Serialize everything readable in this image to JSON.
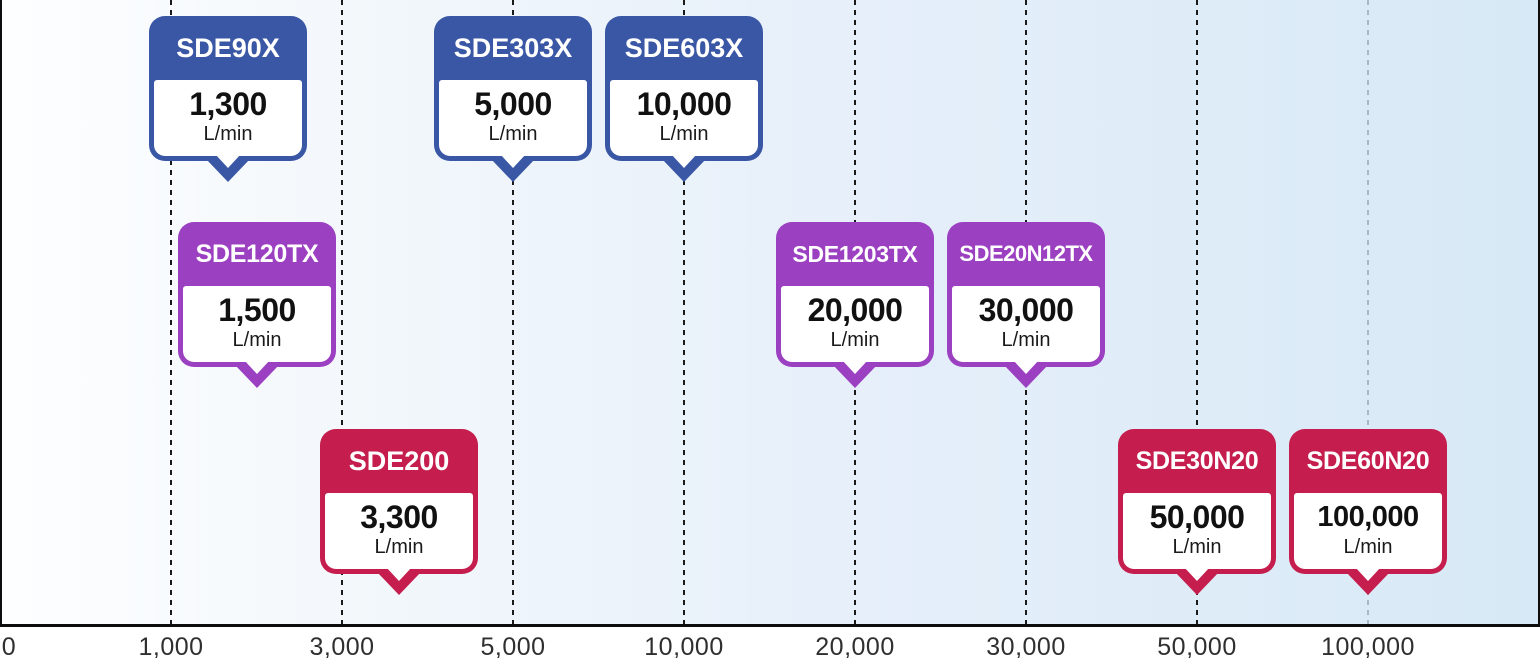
{
  "chart_data": {
    "type": "scatter",
    "title": "",
    "unit": "L/min",
    "x_axis": {
      "scale": "logarithmic",
      "tick_labels": [
        "0",
        "1,000",
        "3,000",
        "5,000",
        "10,000",
        "20,000",
        "30,000",
        "50,000",
        "100,000"
      ],
      "gridlines": "vertical dashed"
    },
    "products": [
      {
        "model": "SDE90X",
        "value_label": "1,300",
        "unit": "L/min",
        "flow_l_min": 1300,
        "color": "#3A57A5",
        "row": 1
      },
      {
        "model": "SDE303X",
        "value_label": "5,000",
        "unit": "L/min",
        "flow_l_min": 5000,
        "color": "#3A57A5",
        "row": 1
      },
      {
        "model": "SDE603X",
        "value_label": "10,000",
        "unit": "L/min",
        "flow_l_min": 10000,
        "color": "#3A57A5",
        "row": 1
      },
      {
        "model": "SDE120TX",
        "value_label": "1,500",
        "unit": "L/min",
        "flow_l_min": 1500,
        "color": "#9C40C2",
        "row": 2
      },
      {
        "model": "SDE1203TX",
        "value_label": "20,000",
        "unit": "L/min",
        "flow_l_min": 20000,
        "color": "#9C40C2",
        "row": 2
      },
      {
        "model": "SDE20N12TX",
        "value_label": "30,000",
        "unit": "L/min",
        "flow_l_min": 30000,
        "color": "#9C40C2",
        "row": 2
      },
      {
        "model": "SDE200",
        "value_label": "3,300",
        "unit": "L/min",
        "flow_l_min": 3300,
        "color": "#C51E4E",
        "row": 3
      },
      {
        "model": "SDE30N20",
        "value_label": "50,000",
        "unit": "L/min",
        "flow_l_min": 50000,
        "color": "#C51E4E",
        "row": 3
      },
      {
        "model": "SDE60N20",
        "value_label": "100,000",
        "unit": "L/min",
        "flow_l_min": 100000,
        "color": "#C51E4E",
        "row": 3
      }
    ],
    "colors": {
      "blue_series": "#3A57A5",
      "purple_series": "#9C40C2",
      "red_series": "#C51E4E",
      "background_gradient_left": "#FDFEFF",
      "background_gradient_right": "#D7E9F6",
      "gridline": "#1A1A1A",
      "gridline_light": "#A9B7C6",
      "axis_line": "#0D0D0D",
      "tick_text": "#2F2F2F"
    }
  }
}
